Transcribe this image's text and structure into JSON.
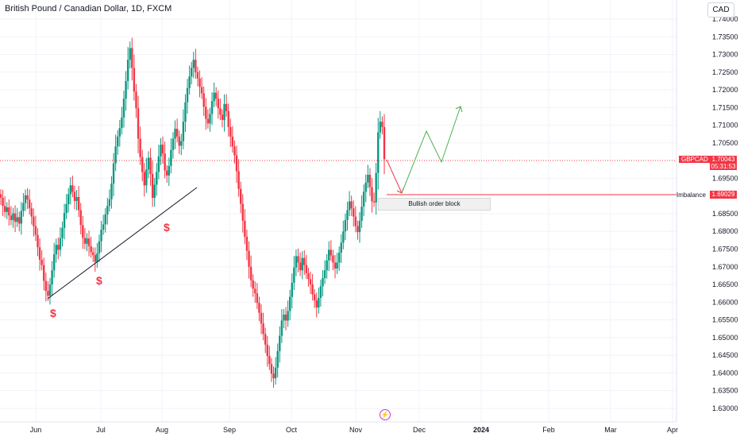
{
  "header": {
    "title": "British Pound / Canadian Dollar, 1D, FXCM",
    "currency": "CAD"
  },
  "colors": {
    "up": "#089981",
    "down": "#f23645",
    "grid": "#f0f3fa",
    "projection_up": "#4caf50",
    "projection_down": "#f23645"
  },
  "price_badge": {
    "symbol": "GBPCAD",
    "price": "1.70043",
    "timer": "05:31:53"
  },
  "imbalance": {
    "label": "Imbalance",
    "price": "1.69029"
  },
  "order_block": {
    "label": "Bullish order block"
  },
  "liquidity_markers": [
    "$",
    "$",
    "$"
  ],
  "chart_data": {
    "type": "candlestick",
    "title": "British Pound / Canadian Dollar, 1D, FXCM",
    "x_tick_labels": [
      "Jun",
      "Jul",
      "Aug",
      "Sep",
      "Oct",
      "Nov",
      "Dec",
      "2024",
      "Feb",
      "Mar",
      "Apr"
    ],
    "y_tick_labels": [
      "1.74000",
      "1.73500",
      "1.73000",
      "1.72500",
      "1.72000",
      "1.71500",
      "1.71000",
      "1.70500",
      "1.70043",
      "1.69500",
      "1.69029",
      "1.68500",
      "1.68000",
      "1.67500",
      "1.67000",
      "1.66500",
      "1.66000",
      "1.65500",
      "1.65000",
      "1.64500",
      "1.64000",
      "1.63500",
      "1.63000"
    ],
    "ylim": [
      1.629,
      1.742
    ],
    "grid": true,
    "last_price": 1.70043,
    "imbalance_level": 1.69029,
    "candle_closes": [
      1.6895,
      1.6872,
      1.6855,
      1.6868,
      1.6845,
      1.6832,
      1.6851,
      1.6827,
      1.684,
      1.6822,
      1.6858,
      1.688,
      1.6902,
      1.689,
      1.6865,
      1.6842,
      1.6815,
      1.679,
      1.6755,
      1.672,
      1.6705,
      1.666,
      1.6632,
      1.6618,
      1.665,
      1.669,
      1.6735,
      1.6762,
      1.6748,
      1.6781,
      1.681,
      1.6852,
      1.6877,
      1.6905,
      1.693,
      1.6912,
      1.6886,
      1.6897,
      1.686,
      1.6818,
      1.6782,
      1.6765,
      1.678,
      1.6758,
      1.6741,
      1.6733,
      1.6714,
      1.6738,
      1.6772,
      1.6805,
      1.682,
      1.6848,
      1.6872,
      1.6891,
      1.6935,
      1.6992,
      1.704,
      1.7068,
      1.7092,
      1.7122,
      1.7175,
      1.7225,
      1.7285,
      1.7318,
      1.7262,
      1.7195,
      1.7148,
      1.7062,
      1.701,
      1.6968,
      1.693,
      1.6975,
      1.7008,
      1.6962,
      1.6895,
      1.6932,
      1.6968,
      1.7012,
      1.7045,
      1.702,
      1.6972,
      1.6958,
      1.6985,
      1.703,
      1.7062,
      1.709,
      1.7068,
      1.7042,
      1.7055,
      1.711,
      1.7165,
      1.7205,
      1.7238,
      1.7262,
      1.7285,
      1.725,
      1.7232,
      1.7208,
      1.719,
      1.7152,
      1.7118,
      1.7105,
      1.7132,
      1.7168,
      1.7192,
      1.7175,
      1.7148,
      1.713,
      1.7115,
      1.716,
      1.714,
      1.7095,
      1.7068,
      1.704,
      1.7015,
      1.697,
      1.692,
      1.6878,
      1.683,
      1.6785,
      1.6745,
      1.67,
      1.6662,
      1.6638,
      1.6625,
      1.6598,
      1.657,
      1.654,
      1.651,
      1.648,
      1.6448,
      1.6425,
      1.6398,
      1.6385,
      1.6415,
      1.6462,
      1.6505,
      1.6548,
      1.6565,
      1.6548,
      1.6575,
      1.6615,
      1.6655,
      1.6698,
      1.673,
      1.6712,
      1.669,
      1.6725,
      1.6705,
      1.6682,
      1.6665,
      1.665,
      1.6622,
      1.6605,
      1.6585,
      1.6612,
      1.6645,
      1.6668,
      1.669,
      1.6718,
      1.6748,
      1.6732,
      1.6712,
      1.6695,
      1.6712,
      1.674,
      1.6768,
      1.68,
      1.6832,
      1.686,
      1.6885,
      1.6865,
      1.6842,
      1.6815,
      1.6798,
      1.683,
      1.687,
      1.6912,
      1.6938,
      1.696,
      1.6925,
      1.6885,
      1.6882,
      1.6965,
      1.708,
      1.711,
      1.7095,
      1.7004
    ],
    "projection_path": [
      1.70043,
      1.69029,
      1.70787,
      1.70211,
      1.71568
    ],
    "annotations": [
      "Bullish order block",
      "Imbalance",
      "$",
      "$",
      "$"
    ]
  }
}
